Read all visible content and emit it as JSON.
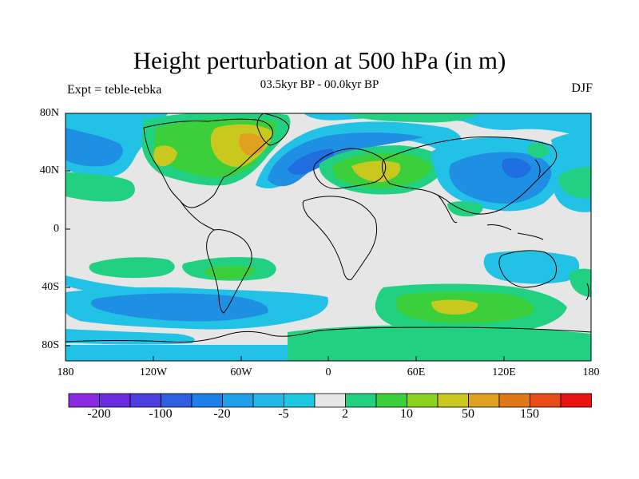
{
  "title": "Height perturbation at 500 hPa (in m)",
  "subtitle": "03.5kyr BP - 00.0kyr BP",
  "left_label": "Expt = teble-tebka",
  "right_label": "DJF",
  "latitude_ticks": [
    "80N",
    "40N",
    "0",
    "40S",
    "80S"
  ],
  "longitude_ticks": [
    "180",
    "120W",
    "60W",
    "0",
    "60E",
    "120E",
    "180"
  ],
  "colorbar": {
    "labels": [
      "-200",
      "-100",
      "-20",
      "-5",
      "2",
      "10",
      "50",
      "150"
    ],
    "colors": [
      "#8a2be2",
      "#6a2be0",
      "#4b3fe0",
      "#2f5fe0",
      "#1f7fe8",
      "#1e9fe8",
      "#24b8e8",
      "#1ec8e0",
      "#e6e6e6",
      "#22d082",
      "#3ccf3c",
      "#8ad21e",
      "#c8c81e",
      "#e0a020",
      "#e07818",
      "#e84a18",
      "#e81414"
    ]
  },
  "colors": {
    "background": "#e6e6e6",
    "cyan": "#22c2e6",
    "blue": "#1f8fe4",
    "deep_blue": "#1f6fe0",
    "green": "#22d082",
    "lime": "#3ccf3c",
    "yellow": "#c8c81e",
    "orange": "#e0a020",
    "coast": "#000000"
  }
}
